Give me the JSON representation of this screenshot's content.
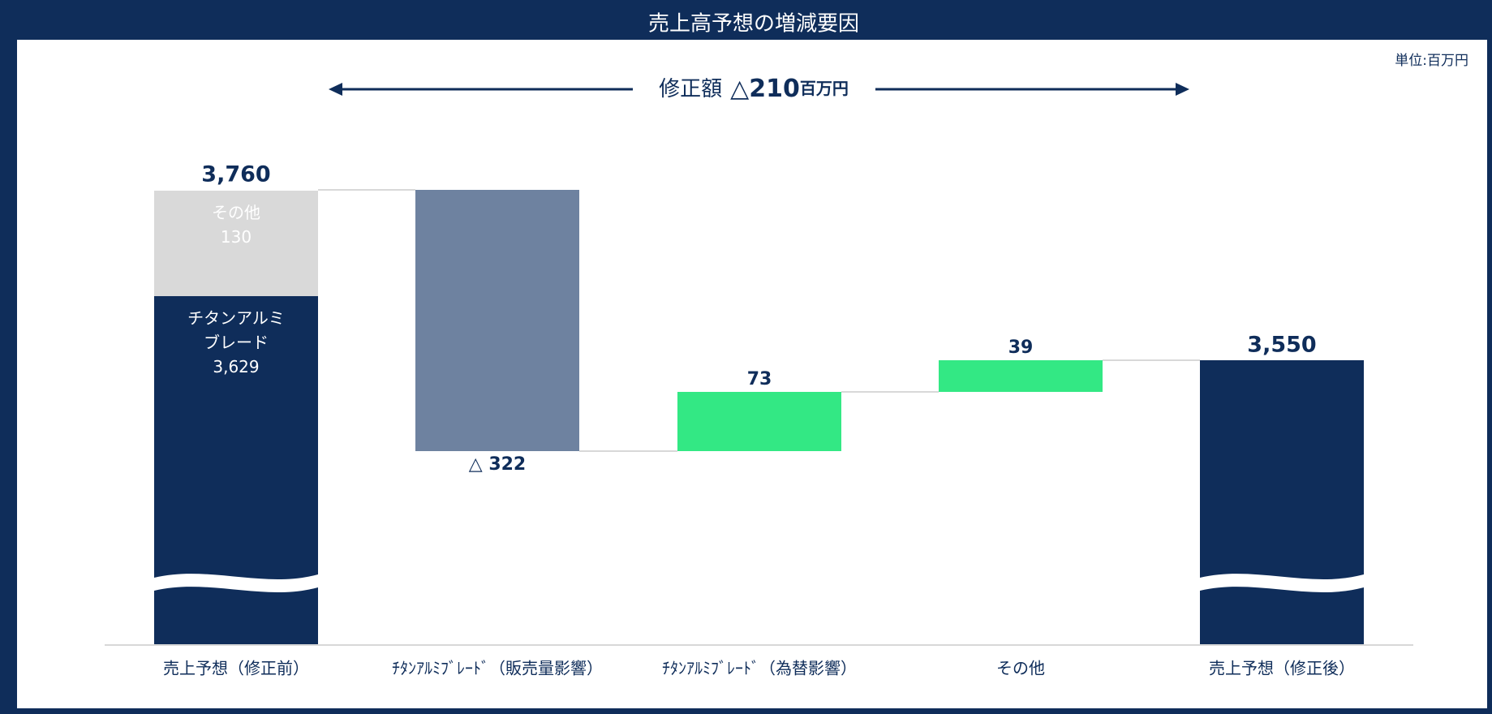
{
  "chart_data": {
    "type": "waterfall",
    "title": "売上高予想の増減要因",
    "unit_label": "単位:百万円",
    "annotation": {
      "text": "修正額",
      "value": -210,
      "value_label": "△210",
      "unit": "百万円"
    },
    "categories": [
      "売上予想（修正前）",
      "ﾁﾀﾝｱﾙﾐﾌﾞﾚｰﾄﾞ（販売量影響）",
      "ﾁﾀﾝｱﾙﾐﾌﾞﾚｰﾄﾞ（為替影響）",
      "その他",
      "売上予想（修正後）"
    ],
    "values": [
      3760,
      -322,
      73,
      39,
      3550
    ],
    "value_labels": [
      "3,760",
      "△ 322",
      "73",
      "39",
      "3,550"
    ],
    "measures": [
      "total",
      "relative",
      "relative",
      "relative",
      "total"
    ],
    "stack": [
      {
        "name": "チタンアルミブレード",
        "value": 3629,
        "value_label": "3,629",
        "color": "#0f2d5a"
      },
      {
        "name": "その他",
        "value": 130,
        "value_label": "130",
        "color": "#d9d9d9"
      }
    ],
    "colors": {
      "total": "#0f2d5a",
      "decrease": "#6e82a0",
      "increase": "#33e884"
    },
    "ylim": [
      3200,
      3780
    ],
    "axis_break": true
  }
}
